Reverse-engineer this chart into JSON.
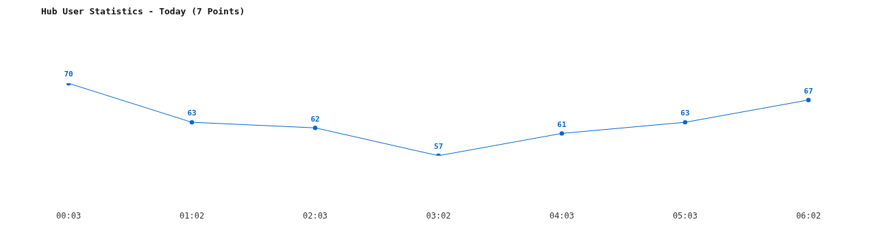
{
  "chart_data": {
    "type": "line",
    "title": "Hub User Statistics - Today (7 Points)",
    "categories": [
      "00:03",
      "01:02",
      "02:03",
      "03:02",
      "04:03",
      "05:03",
      "06:02"
    ],
    "series": [
      {
        "color": "#0066cc",
        "values": [
          70,
          63,
          62,
          57,
          61,
          63,
          67
        ]
      }
    ],
    "data_labels": true,
    "grid": false,
    "legend": false,
    "marker": "circle",
    "line_style": "solid",
    "tick_labels": "x"
  }
}
